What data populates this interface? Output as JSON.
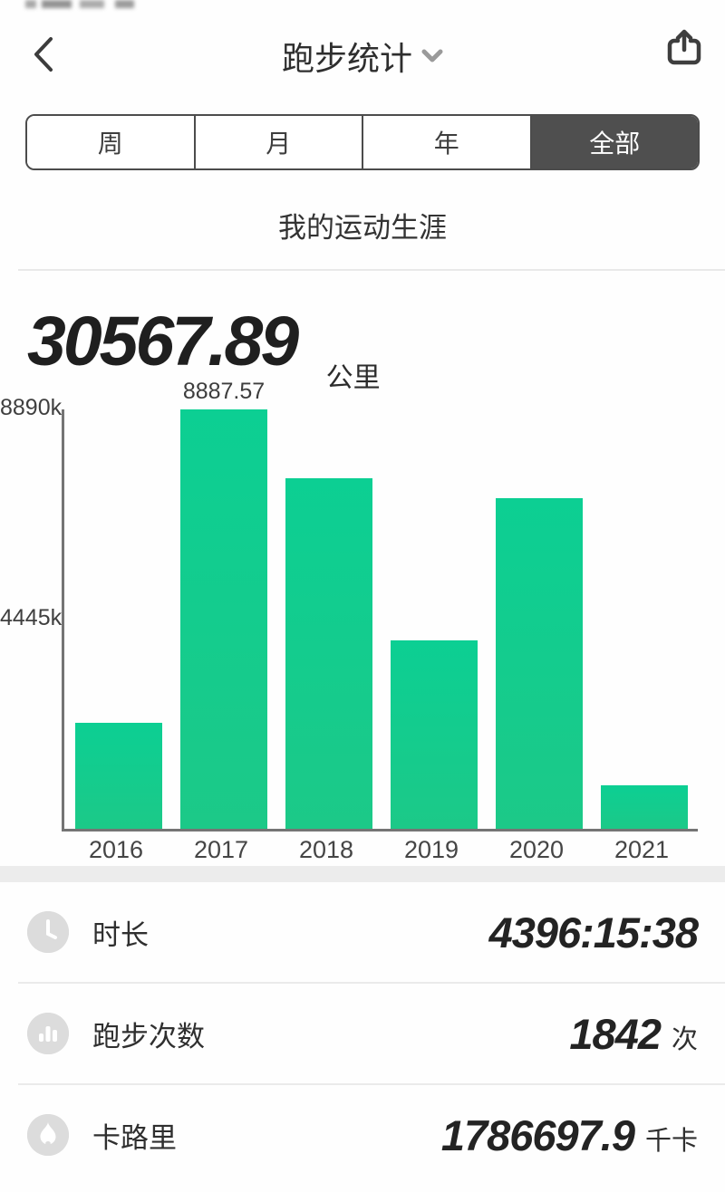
{
  "header": {
    "title": "跑步统计"
  },
  "tabs": {
    "items": [
      {
        "label": "周",
        "selected": false
      },
      {
        "label": "月",
        "selected": false
      },
      {
        "label": "年",
        "selected": false
      },
      {
        "label": "全部",
        "selected": true
      }
    ],
    "selected_bg": "#4f4f4f"
  },
  "section_title": "我的运动生涯",
  "summary": {
    "distance": "30567.89",
    "unit": "公里"
  },
  "chart_data": {
    "type": "bar",
    "title": "",
    "xlabel": "",
    "ylabel": "",
    "categories": [
      "2016",
      "2017",
      "2018",
      "2019",
      "2020",
      "2021"
    ],
    "values": [
      2250,
      8887.57,
      7430,
      4000,
      7000,
      930
    ],
    "value_labels": [
      "",
      "8887.57",
      "",
      "",
      "",
      ""
    ],
    "yticks": [
      {
        "value": 8890,
        "label": "8890k"
      },
      {
        "value": 4445,
        "label": "4445k"
      }
    ],
    "ylim": [
      0,
      8890
    ],
    "bar_color": "#12cd90",
    "grid": false,
    "legend": false
  },
  "stats": {
    "rows": [
      {
        "icon": "clock-icon",
        "label": "时长",
        "value": "4396:15:38",
        "unit": ""
      },
      {
        "icon": "run-count-icon",
        "label": "跑步次数",
        "value": "1842",
        "unit": "次"
      },
      {
        "icon": "flame-icon",
        "label": "卡路里",
        "value": "1786697.9",
        "unit": "千卡"
      }
    ]
  }
}
